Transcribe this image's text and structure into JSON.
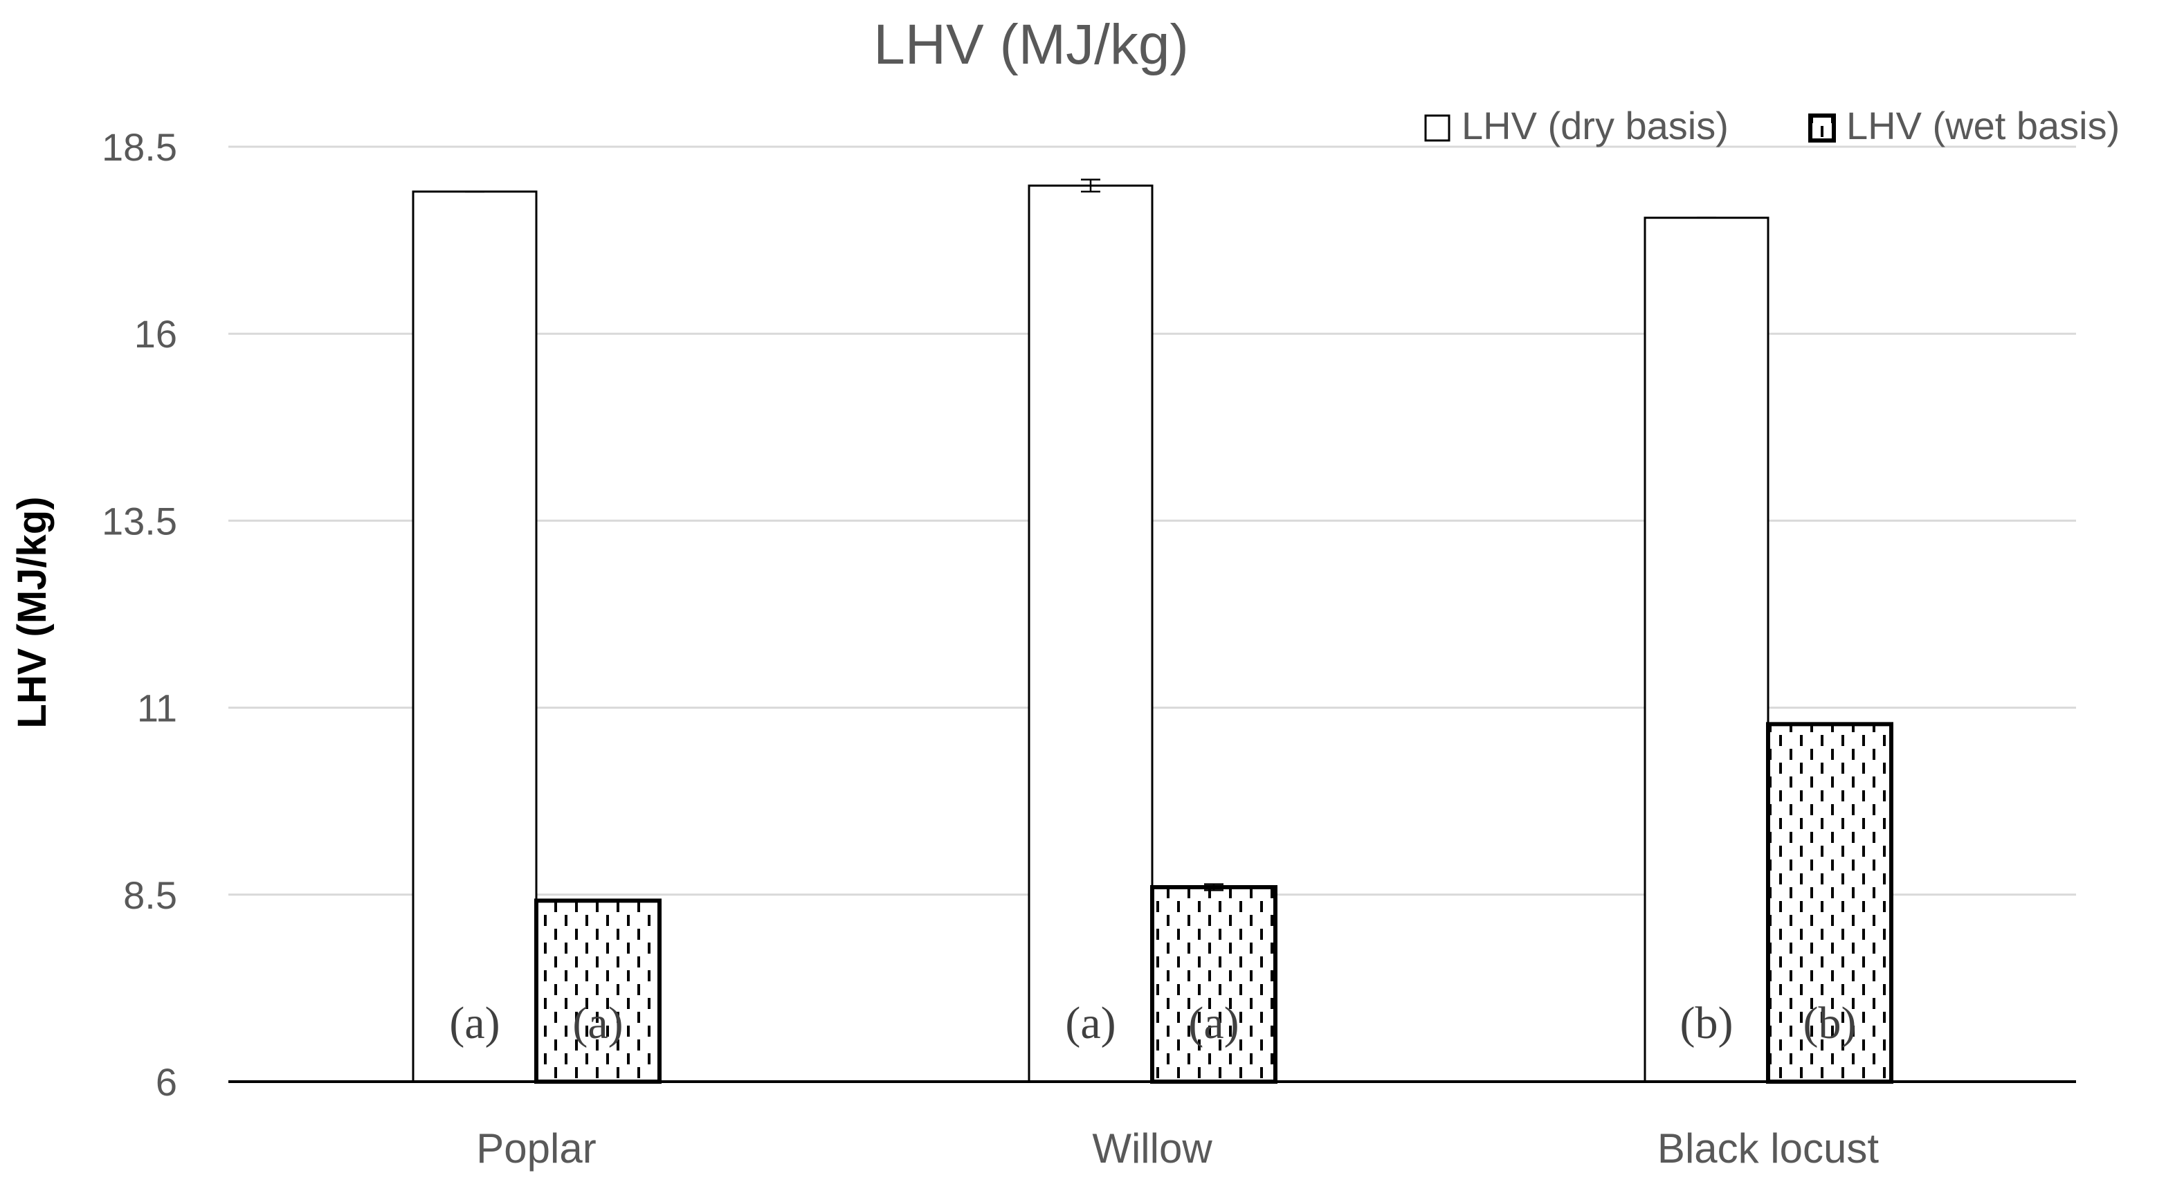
{
  "chart_data": {
    "type": "bar",
    "title": "LHV (MJ/kg)",
    "xlabel": "",
    "ylabel": "LHV (MJ/kg)",
    "ylim": [
      6,
      18.5
    ],
    "yticks": [
      "6",
      "8.5",
      "11",
      "13.5",
      "16",
      "18.5"
    ],
    "grid": true,
    "legend_position": "top-right",
    "categories": [
      "Poplar",
      "Willow",
      "Black locust"
    ],
    "series": [
      {
        "name": "LHV (dry basis)",
        "pattern": "none",
        "values": [
          17.9,
          17.98,
          17.55
        ],
        "errors": [
          0.0,
          0.08,
          0.0
        ],
        "letters": [
          "(a)",
          "(a)",
          "(b)"
        ]
      },
      {
        "name": "LHV (wet basis)",
        "pattern": "dashed",
        "values": [
          8.42,
          8.6,
          10.78
        ],
        "errors": [
          0.0,
          0.04,
          0.0
        ],
        "letters": [
          "(a)",
          "(a)",
          "(b)"
        ]
      }
    ],
    "colors": {
      "bar_fill": "#ffffff",
      "bar_stroke": "#000000",
      "grid": "#d9d9d9",
      "axis": "#000000",
      "text": "#595959",
      "title": "#595959",
      "letters": "#404040"
    }
  }
}
